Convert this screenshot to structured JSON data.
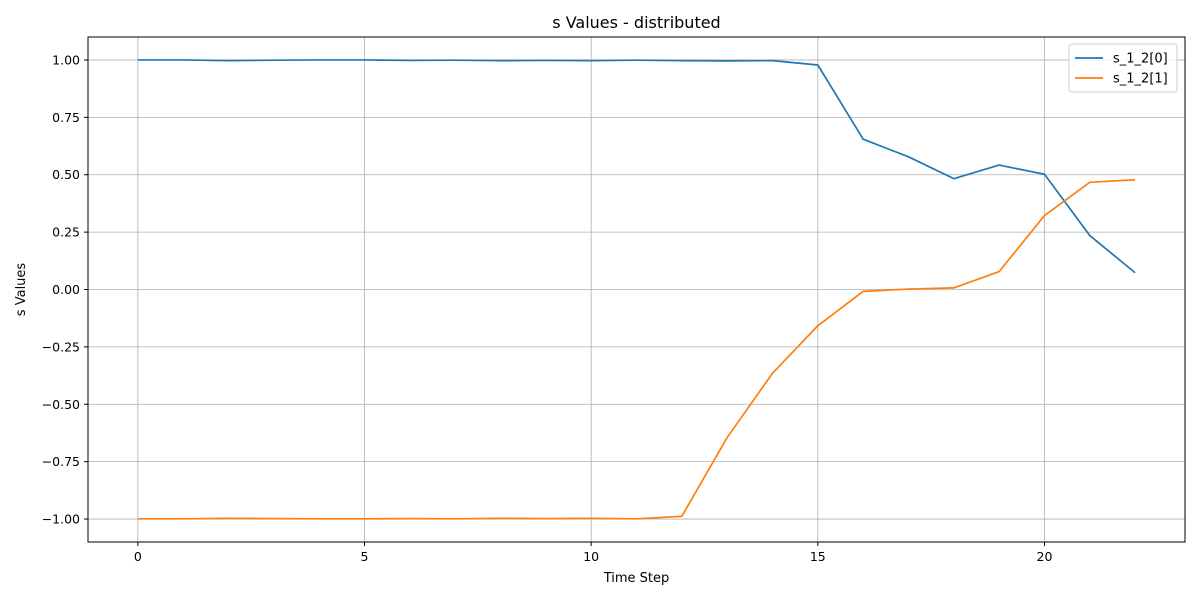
{
  "chart_data": {
    "type": "line",
    "title": "s Values - distributed",
    "xlabel": "Time Step",
    "ylabel": "s Values",
    "xlim": [
      -1.1,
      23.1
    ],
    "ylim": [
      -1.1,
      1.1
    ],
    "xticks": [
      0,
      5,
      10,
      15,
      20
    ],
    "xtick_labels": [
      "0",
      "5",
      "10",
      "15",
      "20"
    ],
    "yticks": [
      1.0,
      0.75,
      0.5,
      0.25,
      0.0,
      -0.25,
      -0.5,
      -0.75,
      -1.0
    ],
    "ytick_labels": [
      "1.00",
      "0.75",
      "0.50",
      "0.25",
      "0.00",
      "−0.25",
      "−0.50",
      "−0.75",
      "−1.00"
    ],
    "grid": true,
    "legend_position": "top-right",
    "x": [
      0,
      1,
      2,
      3,
      4,
      5,
      6,
      7,
      8,
      9,
      10,
      11,
      12,
      13,
      14,
      15,
      16,
      17,
      18,
      19,
      20,
      21,
      22
    ],
    "series": [
      {
        "name": "s_1_2[0]",
        "color": "#1f77b4",
        "values": [
          1.0,
          1.0,
          0.997,
          0.999,
          1.0,
          1.0,
          0.998,
          0.999,
          0.997,
          0.998,
          0.997,
          0.999,
          0.997,
          0.996,
          0.997,
          0.978,
          0.655,
          0.578,
          0.483,
          0.542,
          0.502,
          0.235,
          0.073
        ]
      },
      {
        "name": "s_1_2[1]",
        "color": "#ff7f0e",
        "values": [
          -0.999,
          -0.999,
          -0.997,
          -0.998,
          -0.999,
          -0.999,
          -0.998,
          -0.999,
          -0.997,
          -0.998,
          -0.997,
          -0.999,
          -0.988,
          -0.645,
          -0.365,
          -0.158,
          -0.008,
          0.002,
          0.007,
          0.078,
          0.322,
          0.467,
          0.478
        ]
      }
    ]
  }
}
